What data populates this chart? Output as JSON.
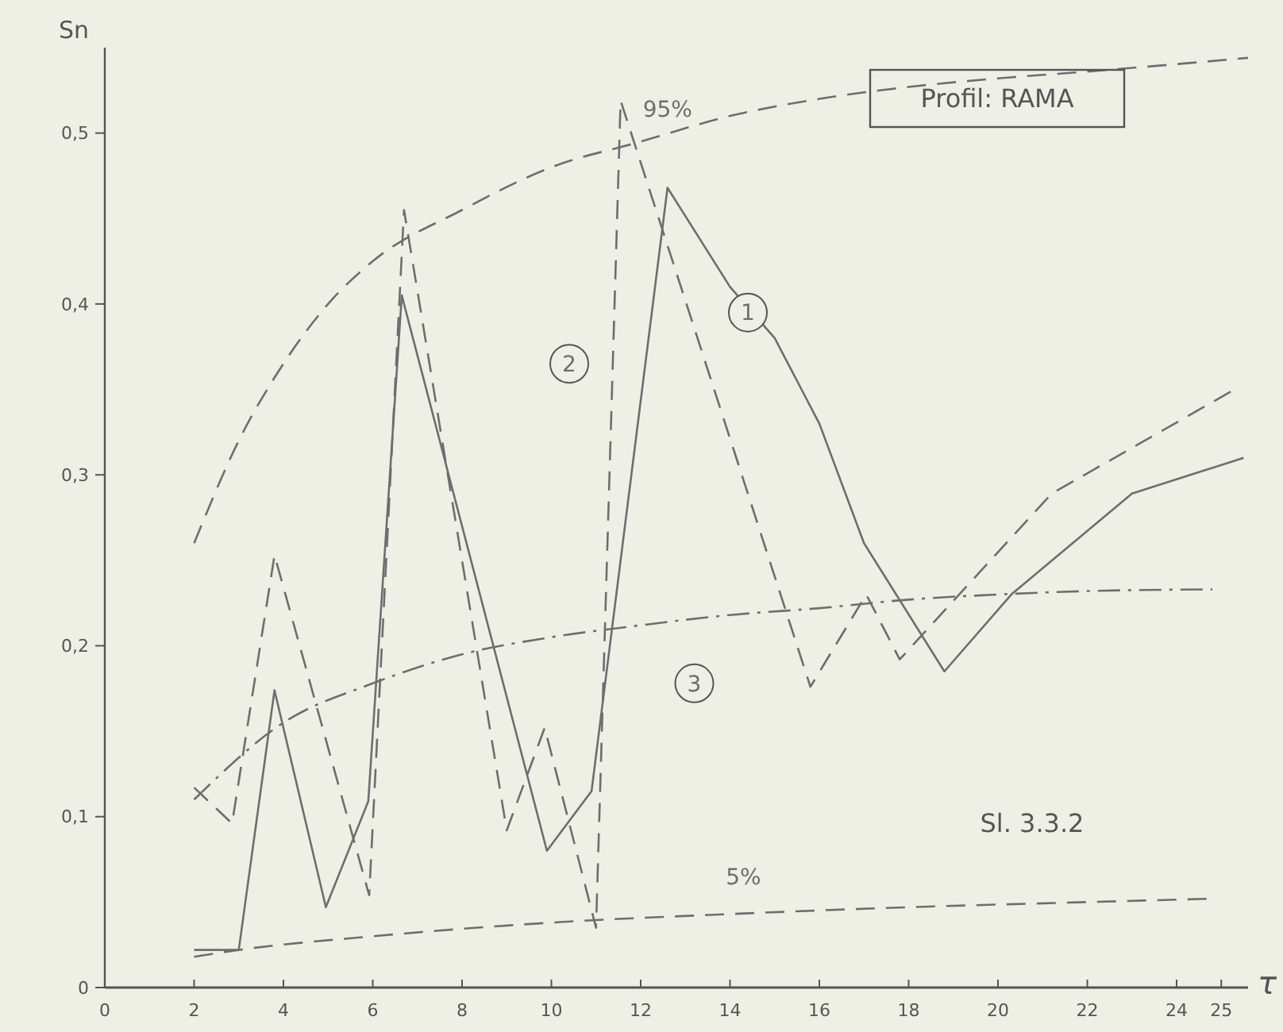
{
  "chart_data": {
    "type": "line",
    "xlabel": "τ",
    "ylabel": "Sn",
    "annotations": [
      "Profil: RAMA",
      "Sl. 3.3.2"
    ],
    "xlim": [
      0,
      25.6
    ],
    "ylim": [
      0,
      0.55
    ],
    "xticks": [
      0,
      2,
      4,
      6,
      8,
      10,
      12,
      14,
      16,
      18,
      20,
      22,
      24,
      25
    ],
    "yticks": [
      0,
      {
        "value": 0.1,
        "label": "0,1"
      },
      {
        "value": 0.2,
        "label": "0,2"
      },
      {
        "value": 0.3,
        "label": "0,3"
      },
      {
        "value": 0.4,
        "label": "0,4"
      },
      {
        "value": 0.5,
        "label": "0,5"
      }
    ],
    "grid": false,
    "marker": "none",
    "series": [
      {
        "name": "1",
        "color": "#6e6e6e",
        "line_style": "solid",
        "x": [
          2,
          3,
          3.8,
          4.95,
          5.9,
          6.65,
          9.9,
          10.9,
          12.6,
          14,
          15,
          16,
          17,
          18.8,
          20.3,
          23,
          25.5
        ],
        "values": [
          0.022,
          0.022,
          0.174,
          0.047,
          0.109,
          0.405,
          0.08,
          0.115,
          0.468,
          0.41,
          0.38,
          0.33,
          0.26,
          0.185,
          0.23,
          0.289,
          0.31
        ]
      },
      {
        "name": "2",
        "color": "#6e6e6e",
        "line_style": "dashed",
        "x": [
          2,
          2.85,
          3.8,
          5.92,
          6.7,
          9,
          9.85,
          11,
          11.55,
          15.8,
          17.05,
          17.8,
          21.2,
          25.3
        ],
        "values": [
          0.117,
          0.096,
          0.253,
          0.054,
          0.455,
          0.092,
          0.152,
          0.035,
          0.519,
          0.176,
          0.23,
          0.192,
          0.289,
          0.35
        ]
      },
      {
        "name": "3",
        "color": "#6e6e6e",
        "line_style": "dashdot",
        "x": [
          2,
          4,
          6,
          8,
          10,
          12,
          14,
          16,
          18,
          20,
          22,
          24.8
        ],
        "values": [
          0.11,
          0.155,
          0.178,
          0.195,
          0.205,
          0.212,
          0.218,
          0.222,
          0.227,
          0.23,
          0.232,
          0.233
        ]
      },
      {
        "name": "95%",
        "color": "#6e6e6e",
        "line_style": "dashed",
        "x": [
          2,
          3,
          4,
          5,
          6,
          8,
          10,
          12,
          14,
          16,
          18,
          20,
          22,
          25.6
        ],
        "values": [
          0.26,
          0.32,
          0.365,
          0.4,
          0.425,
          0.455,
          0.48,
          0.495,
          0.51,
          0.52,
          0.527,
          0.532,
          0.536,
          0.544
        ]
      },
      {
        "name": "5%",
        "color": "#6e6e6e",
        "line_style": "dashed",
        "x": [
          2,
          3,
          6,
          10,
          14,
          18,
          22,
          24.8
        ],
        "values": [
          0.018,
          0.022,
          0.03,
          0.038,
          0.043,
          0.047,
          0.05,
          0.052
        ]
      }
    ]
  }
}
